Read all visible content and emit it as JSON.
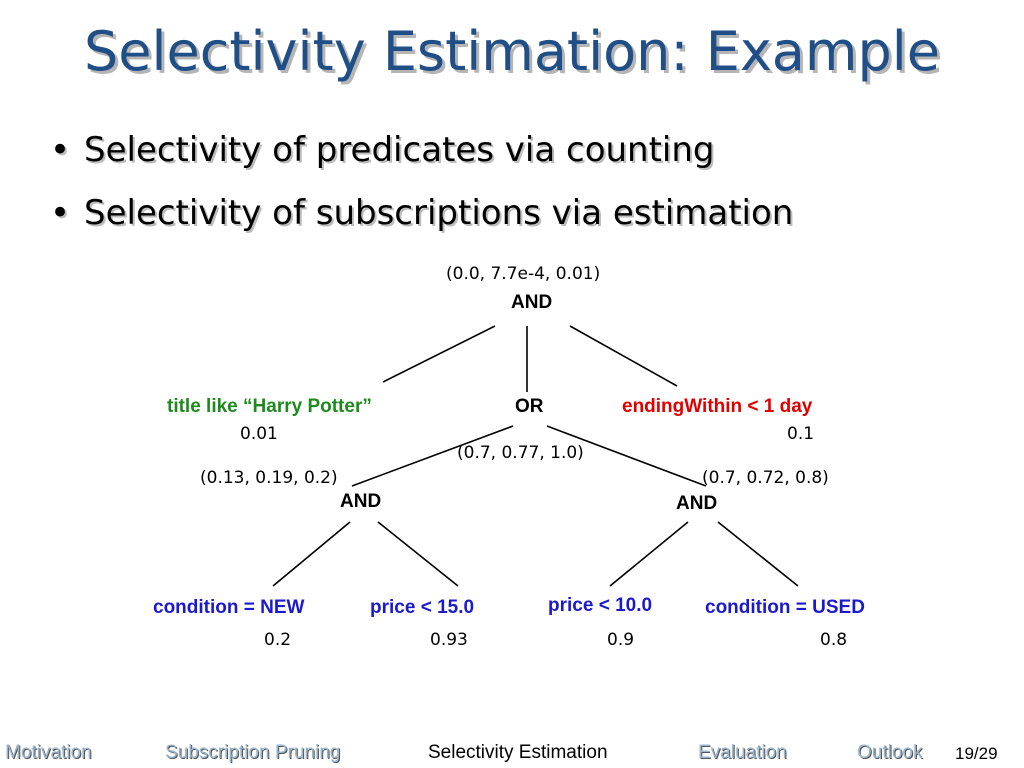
{
  "slide": {
    "title": "Selectivity Estimation: Example",
    "bullets": [
      "Selectivity of predicates via counting",
      "Selectivity of subscriptions via estimation"
    ],
    "bullet_glyph": "•"
  },
  "tree": {
    "root": {
      "label": "AND",
      "estimate": "(0.0, 7.7e-4, 0.01)"
    },
    "title_pred": {
      "label": "title like “Harry Potter”",
      "selectivity": "0.01"
    },
    "or_node": {
      "label": "OR",
      "estimate": "(0.7, 0.77, 1.0)"
    },
    "ending_pred": {
      "label": "endingWithin < 1 day",
      "selectivity": "0.1"
    },
    "left_and": {
      "label": "AND",
      "estimate": "(0.13, 0.19, 0.2)"
    },
    "right_and": {
      "label": "AND",
      "estimate": "(0.7, 0.72, 0.8)"
    },
    "leaf_cond_new": {
      "label": "condition = NEW",
      "selectivity": "0.2"
    },
    "leaf_price_15": {
      "label": "price < 15.0",
      "selectivity": "0.93"
    },
    "leaf_price_10": {
      "label": "price < 10.0",
      "selectivity": "0.9"
    },
    "leaf_cond_used": {
      "label": "condition = USED",
      "selectivity": "0.8"
    }
  },
  "footer": {
    "sections": [
      "Motivation",
      "Subscription Pruning",
      "Selectivity Estimation",
      "Evaluation",
      "Outlook"
    ],
    "active_section": "Selectivity Estimation",
    "page": "19/29"
  },
  "colors": {
    "title": "#1f4f86",
    "green_predicate": "#1e8a1e",
    "red_predicate": "#e00000",
    "blue_predicate": "#1a1acc",
    "nav_inactive": "#9ab6cf"
  }
}
